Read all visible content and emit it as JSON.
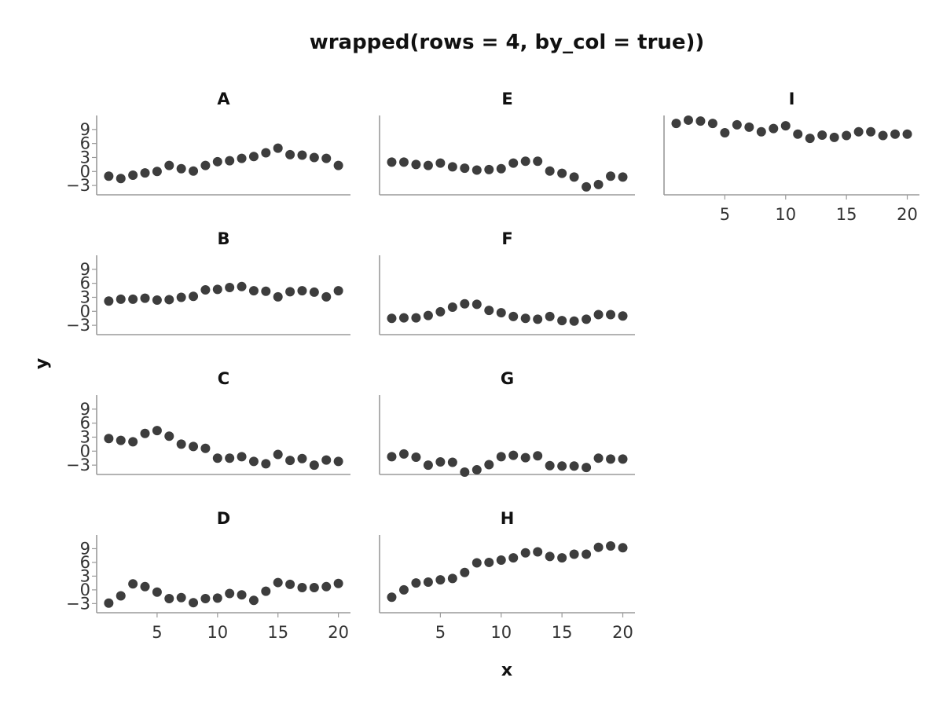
{
  "chart_data": {
    "type": "scatter",
    "title": "wrapped(rows = 4, by_col = true))",
    "xlabel": "x",
    "ylabel": "y",
    "xlim": [
      0,
      21
    ],
    "ylim": [
      -5,
      12
    ],
    "xticks": [
      5,
      10,
      15,
      20
    ],
    "yticks": [
      -3,
      0,
      3,
      6,
      9
    ],
    "ytick_labels": [
      "−3",
      "0",
      "3",
      "6",
      "9"
    ],
    "grid": false,
    "point_color": "#3d3d3d",
    "axis_color": "#9a9a9a",
    "x": [
      1,
      2,
      3,
      4,
      5,
      6,
      7,
      8,
      9,
      10,
      11,
      12,
      13,
      14,
      15,
      16,
      17,
      18,
      19,
      20
    ],
    "facets": [
      {
        "label": "A",
        "values": [
          -1.0,
          -1.5,
          -0.8,
          -0.3,
          0.0,
          1.3,
          0.6,
          0.1,
          1.3,
          2.1,
          2.3,
          2.8,
          3.2,
          4.0,
          5.0,
          3.6,
          3.5,
          3.0,
          2.8,
          1.3
        ]
      },
      {
        "label": "B",
        "values": [
          2.2,
          2.6,
          2.6,
          2.8,
          2.4,
          2.5,
          3.0,
          3.2,
          4.6,
          4.7,
          5.1,
          5.3,
          4.4,
          4.3,
          3.1,
          4.2,
          4.4,
          4.1,
          3.1,
          4.4
        ]
      },
      {
        "label": "C",
        "values": [
          2.7,
          2.3,
          2.0,
          3.8,
          4.4,
          3.2,
          1.5,
          1.0,
          0.6,
          -1.5,
          -1.5,
          -1.2,
          -2.2,
          -2.7,
          -0.7,
          -2.0,
          -1.6,
          -3.0,
          -1.9,
          -2.2
        ]
      },
      {
        "label": "D",
        "values": [
          -2.9,
          -1.3,
          1.3,
          0.7,
          -0.5,
          -1.9,
          -1.7,
          -2.8,
          -1.9,
          -1.8,
          -0.8,
          -1.1,
          -2.3,
          -0.3,
          1.6,
          1.2,
          0.5,
          0.5,
          0.7,
          1.4
        ]
      },
      {
        "label": "E",
        "values": [
          2.0,
          2.0,
          1.5,
          1.3,
          1.8,
          1.0,
          0.7,
          0.3,
          0.4,
          0.6,
          1.8,
          2.2,
          2.2,
          0.1,
          -0.4,
          -1.2,
          -3.3,
          -2.8,
          -1.0,
          -1.2
        ]
      },
      {
        "label": "F",
        "values": [
          -1.5,
          -1.4,
          -1.4,
          -0.9,
          -0.1,
          0.9,
          1.6,
          1.5,
          0.2,
          -0.3,
          -1.1,
          -1.5,
          -1.7,
          -1.1,
          -2.0,
          -2.1,
          -1.7,
          -0.7,
          -0.7,
          -1.0
        ]
      },
      {
        "label": "G",
        "values": [
          -1.2,
          -0.6,
          -1.3,
          -3.0,
          -2.3,
          -2.4,
          -4.5,
          -4.0,
          -2.9,
          -1.2,
          -0.9,
          -1.4,
          -1.0,
          -3.1,
          -3.2,
          -3.2,
          -3.5,
          -1.5,
          -1.7,
          -1.7
        ]
      },
      {
        "label": "H",
        "values": [
          -1.6,
          0.0,
          1.5,
          1.7,
          2.2,
          2.5,
          3.8,
          5.9,
          6.0,
          6.5,
          7.0,
          8.1,
          8.3,
          7.3,
          7.0,
          7.8,
          7.8,
          9.3,
          9.6,
          9.2
        ]
      },
      {
        "label": "I",
        "values": [
          10.3,
          11.0,
          10.8,
          10.3,
          8.3,
          10.0,
          9.5,
          8.5,
          9.2,
          9.8,
          8.0,
          7.1,
          7.8,
          7.3,
          7.7,
          8.5,
          8.5,
          7.7,
          8.0,
          8.0
        ]
      }
    ]
  }
}
